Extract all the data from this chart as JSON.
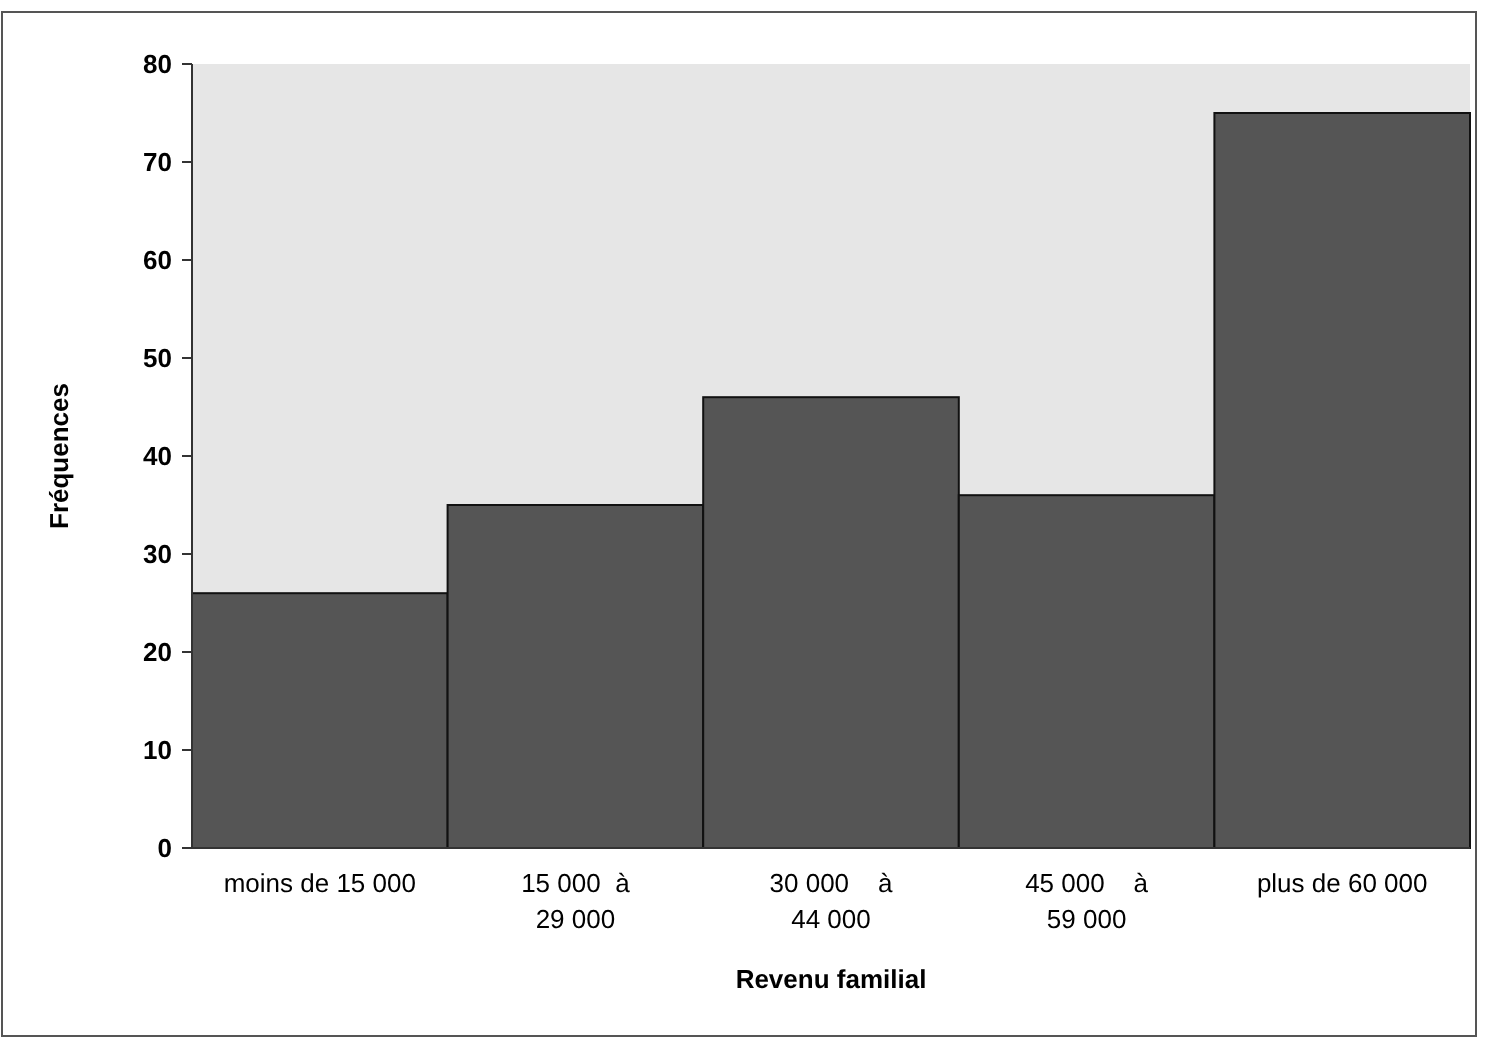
{
  "chart_data": {
    "type": "bar",
    "xlabel": "Revenu familial",
    "ylabel": "Fréquences",
    "categories": [
      "moins de 15 000",
      "15 000  à\n29 000",
      "30 000    à\n44 000",
      "45 000    à\n59 000",
      "plus de 60 000"
    ],
    "values": [
      26,
      35,
      46,
      36,
      75
    ],
    "color": "#555555",
    "ylim": [
      0,
      80
    ],
    "yticks": [
      0,
      10,
      20,
      30,
      40,
      50,
      60,
      70,
      80
    ],
    "grid": false
  }
}
